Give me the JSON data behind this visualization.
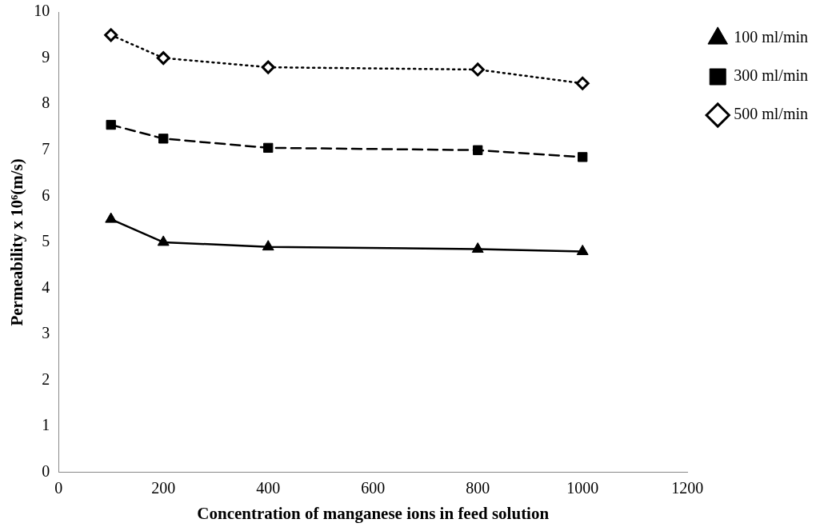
{
  "chart_data": {
    "type": "line",
    "xlabel": "Concentration of manganese ions in feed solution",
    "ylabel": "Permeability x 10⁶(m/s)",
    "x": [
      100,
      200,
      400,
      800,
      1000
    ],
    "xlim": [
      0,
      1200
    ],
    "xticks": [
      0,
      200,
      400,
      600,
      800,
      1000,
      1200
    ],
    "ylim": [
      0,
      10
    ],
    "yticks": [
      0,
      1,
      2,
      3,
      4,
      5,
      6,
      7,
      8,
      9,
      10
    ],
    "grid": false,
    "legend": "right",
    "series": [
      {
        "name": "100 ml/min",
        "color": "#000000",
        "marker": "triangle",
        "line_style": "solid",
        "values": [
          5.5,
          5.0,
          4.9,
          4.85,
          4.8
        ]
      },
      {
        "name": "300 ml/min",
        "color": "#000000",
        "marker": "square",
        "line_style": "dashed",
        "values": [
          7.55,
          7.25,
          7.05,
          7.0,
          6.85
        ]
      },
      {
        "name": "500 ml/min",
        "color": "#000000",
        "marker": "diamond",
        "line_style": "dotted",
        "values": [
          9.5,
          9.0,
          8.8,
          8.75,
          8.45
        ]
      }
    ]
  }
}
